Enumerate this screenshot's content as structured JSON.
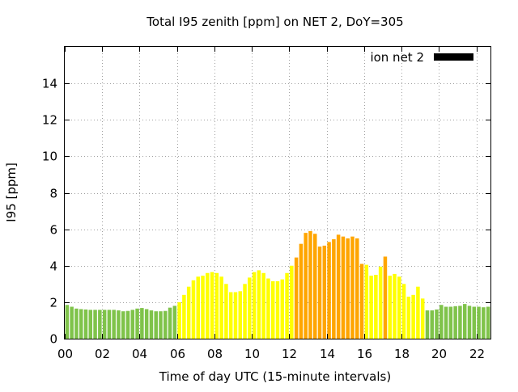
{
  "chart_data": {
    "type": "bar",
    "title": "Total I95 zenith [ppm] on NET 2, DoY=305",
    "xlabel": "Time of day UTC (15-minute intervals)",
    "ylabel": "I95 [ppm]",
    "xlim": [
      0,
      22.75
    ],
    "ylim": [
      0,
      16
    ],
    "grid": true,
    "x_ticks": [
      {
        "value": 0,
        "label": "00"
      },
      {
        "value": 2,
        "label": "02"
      },
      {
        "value": 4,
        "label": "04"
      },
      {
        "value": 6,
        "label": "06"
      },
      {
        "value": 8,
        "label": "08"
      },
      {
        "value": 10,
        "label": "10"
      },
      {
        "value": 12,
        "label": "12"
      },
      {
        "value": 14,
        "label": "14"
      },
      {
        "value": 16,
        "label": "16"
      },
      {
        "value": 18,
        "label": "18"
      },
      {
        "value": 20,
        "label": "20"
      },
      {
        "value": 22,
        "label": "22"
      }
    ],
    "y_ticks": [
      {
        "value": 0,
        "label": "0"
      },
      {
        "value": 2,
        "label": "2"
      },
      {
        "value": 4,
        "label": "4"
      },
      {
        "value": 6,
        "label": "6"
      },
      {
        "value": 8,
        "label": "8"
      },
      {
        "value": 10,
        "label": "10"
      },
      {
        "value": 12,
        "label": "12"
      },
      {
        "value": 14,
        "label": "14"
      }
    ],
    "legend": {
      "label": "ion net 2",
      "color": "#000000",
      "position": "top-right"
    },
    "colors": {
      "low": "#7fc34a",
      "moderate": "#ffff00",
      "elevated": "#ffa500"
    },
    "interval_hours": 0.25,
    "values": [
      1.85,
      1.75,
      1.65,
      1.62,
      1.6,
      1.58,
      1.58,
      1.58,
      1.58,
      1.58,
      1.58,
      1.55,
      1.5,
      1.52,
      1.58,
      1.65,
      1.68,
      1.62,
      1.55,
      1.5,
      1.5,
      1.52,
      1.7,
      1.8,
      2.0,
      2.4,
      2.85,
      3.2,
      3.4,
      3.45,
      3.6,
      3.65,
      3.6,
      3.4,
      3.0,
      2.55,
      2.55,
      2.6,
      3.0,
      3.35,
      3.65,
      3.75,
      3.6,
      3.3,
      3.15,
      3.15,
      3.25,
      3.6,
      4.0,
      4.45,
      5.2,
      5.8,
      5.9,
      5.75,
      5.05,
      5.1,
      5.3,
      5.45,
      5.7,
      5.6,
      5.5,
      5.6,
      5.5,
      4.1,
      4.05,
      3.45,
      3.5,
      3.95,
      4.5,
      3.45,
      3.55,
      3.4,
      3.0,
      2.3,
      2.4,
      2.85,
      2.2,
      1.55,
      1.55,
      1.6,
      1.85,
      1.75,
      1.75,
      1.78,
      1.8,
      1.9,
      1.8,
      1.75,
      1.75,
      1.72,
      1.75,
      1.7
    ],
    "levels": [
      "low",
      "low",
      "low",
      "low",
      "low",
      "low",
      "low",
      "low",
      "low",
      "low",
      "low",
      "low",
      "low",
      "low",
      "low",
      "low",
      "low",
      "low",
      "low",
      "low",
      "low",
      "low",
      "low",
      "low",
      "moderate",
      "moderate",
      "moderate",
      "moderate",
      "moderate",
      "moderate",
      "moderate",
      "moderate",
      "moderate",
      "moderate",
      "moderate",
      "moderate",
      "moderate",
      "moderate",
      "moderate",
      "moderate",
      "moderate",
      "moderate",
      "moderate",
      "moderate",
      "moderate",
      "moderate",
      "moderate",
      "moderate",
      "moderate",
      "elevated",
      "elevated",
      "elevated",
      "elevated",
      "elevated",
      "elevated",
      "elevated",
      "elevated",
      "elevated",
      "elevated",
      "elevated",
      "elevated",
      "elevated",
      "elevated",
      "elevated",
      "moderate",
      "moderate",
      "moderate",
      "moderate",
      "elevated",
      "moderate",
      "moderate",
      "moderate",
      "moderate",
      "moderate",
      "moderate",
      "moderate",
      "moderate",
      "low",
      "low",
      "low",
      "low",
      "low",
      "low",
      "low",
      "low",
      "low",
      "low",
      "low",
      "low",
      "low",
      "low",
      "low"
    ]
  }
}
